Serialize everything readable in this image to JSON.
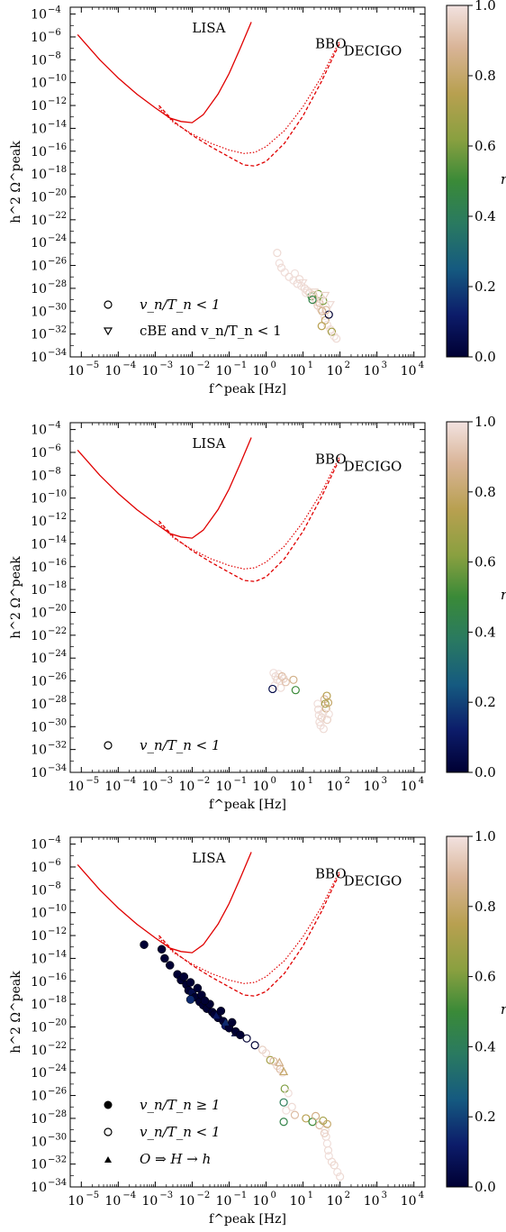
{
  "chart_data": [
    {
      "type": "scatter",
      "xlabel": "f^peak [Hz]",
      "ylabel": "h^2 Ω^peak",
      "xlim": [
        -5.3,
        4.3
      ],
      "ylim": [
        -34,
        -3.4
      ],
      "xscale": "log",
      "yscale": "log",
      "x_tick_exponents": [
        -5,
        -4,
        -3,
        -2,
        -1,
        0,
        1,
        2,
        3,
        4
      ],
      "y_tick_exponents": [
        -34,
        -32,
        -30,
        -28,
        -26,
        -24,
        -22,
        -20,
        -18,
        -16,
        -14,
        -12,
        -10,
        -8,
        -6,
        -4
      ],
      "colorbar": {
        "label": "r",
        "ticks": [
          "0.0",
          "0.2",
          "0.4",
          "0.6",
          "0.8",
          "1.0"
        ]
      },
      "detector_labels": [
        {
          "text": "LISA",
          "log_f": -1.55,
          "log_h2": -5.6
        },
        {
          "text": "BBO",
          "log_f": 1.75,
          "log_h2": -7.0
        },
        {
          "text": "DECIGO",
          "log_f": 2.95,
          "log_h2": -7.6
        }
      ],
      "legend": {
        "position": "bottom-left",
        "entries": [
          {
            "marker": "open-circle",
            "text": "v_n/T_n < 1"
          },
          {
            "marker": "open-triangle-down",
            "text": "cBE and v_n/T_n < 1"
          }
        ]
      },
      "points": {
        "open_circles": [
          [
            2.0,
            -24.9,
            0.98
          ],
          [
            2.3,
            -25.8,
            0.99
          ],
          [
            2.6,
            -26.2,
            0.98
          ],
          [
            3.2,
            -26.6,
            0.99
          ],
          [
            4.2,
            -27.0,
            0.98
          ],
          [
            5.5,
            -27.3,
            0.99
          ],
          [
            7.0,
            -27.6,
            0.98
          ],
          [
            9.0,
            -27.8,
            0.99
          ],
          [
            11.0,
            -28.0,
            0.97
          ],
          [
            13.0,
            -28.2,
            0.98
          ],
          [
            15.0,
            -28.4,
            0.96
          ],
          [
            17.0,
            -28.7,
            0.5
          ],
          [
            19.0,
            -28.6,
            0.92
          ],
          [
            21.0,
            -28.9,
            0.98
          ],
          [
            23.0,
            -29.2,
            0.99
          ],
          [
            25.0,
            -29.5,
            0.95
          ],
          [
            28.0,
            -29.3,
            0.9
          ],
          [
            30.0,
            -29.8,
            0.97
          ],
          [
            33.0,
            -30.0,
            0.85
          ],
          [
            35.0,
            -29.1,
            0.6
          ],
          [
            38.0,
            -30.4,
            0.98
          ],
          [
            40.0,
            -30.8,
            0.8
          ],
          [
            45.0,
            -31.2,
            0.99
          ],
          [
            50.0,
            -30.3,
            0.0
          ],
          [
            55.0,
            -31.6,
            0.98
          ],
          [
            60.0,
            -31.8,
            0.7
          ],
          [
            70.0,
            -32.2,
            0.99
          ],
          [
            80.0,
            -32.4,
            0.98
          ],
          [
            18.0,
            -29.0,
            0.45
          ],
          [
            26.0,
            -28.5,
            0.6
          ],
          [
            32.0,
            -31.3,
            0.75
          ],
          [
            42.0,
            -29.9,
            0.9
          ],
          [
            6.0,
            -26.7,
            0.99
          ],
          [
            8.0,
            -27.2,
            0.98
          ],
          [
            12.0,
            -28.4,
            0.99
          ]
        ],
        "open_triangles": [
          [
            10.0,
            -27.5,
            0.98
          ],
          [
            20.0,
            -28.3,
            0.97
          ],
          [
            30.0,
            -29.0,
            0.98
          ],
          [
            40.0,
            -28.6,
            0.96
          ],
          [
            55.0,
            -29.4,
            0.98
          ]
        ],
        "filled_circles": [],
        "filled_triangles": []
      }
    },
    {
      "type": "scatter",
      "xlabel": "f^peak [Hz]",
      "ylabel": "h^2 Ω^peak",
      "xlim": [
        -5.3,
        4.3
      ],
      "ylim": [
        -34,
        -3.4
      ],
      "xscale": "log",
      "yscale": "log",
      "x_tick_exponents": [
        -5,
        -4,
        -3,
        -2,
        -1,
        0,
        1,
        2,
        3,
        4
      ],
      "y_tick_exponents": [
        -34,
        -32,
        -30,
        -28,
        -26,
        -24,
        -22,
        -20,
        -18,
        -16,
        -14,
        -12,
        -10,
        -8,
        -6,
        -4
      ],
      "colorbar": {
        "label": "r",
        "ticks": [
          "0.0",
          "0.2",
          "0.4",
          "0.6",
          "0.8",
          "1.0"
        ]
      },
      "detector_labels": [
        {
          "text": "LISA",
          "log_f": -1.55,
          "log_h2": -5.6
        },
        {
          "text": "BBO",
          "log_f": 1.75,
          "log_h2": -7.0
        },
        {
          "text": "DECIGO",
          "log_f": 2.95,
          "log_h2": -7.6
        }
      ],
      "legend": {
        "position": "bottom-left",
        "entries": [
          {
            "marker": "open-circle",
            "text": "v_n/T_n < 1"
          }
        ]
      },
      "points": {
        "open_circles": [
          [
            1.6,
            -25.3,
            0.99
          ],
          [
            1.8,
            -25.6,
            0.98
          ],
          [
            2.0,
            -25.9,
            0.97
          ],
          [
            2.2,
            -25.4,
            0.99
          ],
          [
            2.4,
            -26.0,
            0.98
          ],
          [
            2.7,
            -25.6,
            0.9
          ],
          [
            3.0,
            -25.8,
            0.96
          ],
          [
            1.7,
            -26.4,
            0.99
          ],
          [
            1.5,
            -26.7,
            0.05
          ],
          [
            2.5,
            -26.6,
            0.98
          ],
          [
            3.4,
            -26.1,
            0.92
          ],
          [
            5.5,
            -25.9,
            0.85
          ],
          [
            6.3,
            -26.8,
            0.5
          ],
          [
            25.0,
            -28.0,
            0.99
          ],
          [
            26.0,
            -28.5,
            0.98
          ],
          [
            27.0,
            -29.0,
            0.99
          ],
          [
            28.0,
            -29.6,
            0.98
          ],
          [
            30.0,
            -29.9,
            0.99
          ],
          [
            32.0,
            -29.2,
            0.97
          ],
          [
            35.0,
            -28.8,
            0.98
          ],
          [
            38.0,
            -27.6,
            0.9
          ],
          [
            40.0,
            -28.0,
            0.7
          ],
          [
            42.0,
            -28.4,
            0.85
          ],
          [
            45.0,
            -29.4,
            0.95
          ],
          [
            48.0,
            -27.9,
            0.8
          ],
          [
            50.0,
            -28.9,
            0.99
          ],
          [
            36.0,
            -30.2,
            0.98
          ],
          [
            44.0,
            -27.3,
            0.75
          ]
        ],
        "open_triangles": [],
        "filled_circles": [],
        "filled_triangles": []
      }
    },
    {
      "type": "scatter",
      "xlabel": "f^peak [Hz]",
      "ylabel": "h^2 Ω^peak",
      "xlim": [
        -5.3,
        4.3
      ],
      "ylim": [
        -34,
        -3.4
      ],
      "xscale": "log",
      "yscale": "log",
      "x_tick_exponents": [
        -5,
        -4,
        -3,
        -2,
        -1,
        0,
        1,
        2,
        3,
        4
      ],
      "y_tick_exponents": [
        -34,
        -32,
        -30,
        -28,
        -26,
        -24,
        -22,
        -20,
        -18,
        -16,
        -14,
        -12,
        -10,
        -8,
        -6,
        -4
      ],
      "colorbar": {
        "label": "r",
        "ticks": [
          "0.0",
          "0.2",
          "0.4",
          "0.6",
          "0.8",
          "1.0"
        ]
      },
      "detector_labels": [
        {
          "text": "LISA",
          "log_f": -1.55,
          "log_h2": -5.6
        },
        {
          "text": "BBO",
          "log_f": 1.75,
          "log_h2": -7.0
        },
        {
          "text": "DECIGO",
          "log_f": 2.95,
          "log_h2": -7.6
        }
      ],
      "legend": {
        "position": "bottom-left",
        "entries": [
          {
            "marker": "filled-circle",
            "text": "v_n/T_n ≥ 1"
          },
          {
            "marker": "open-circle",
            "text": "v_n/T_n < 1"
          },
          {
            "marker": "filled-triangle",
            "text": "O ⇒ H → h"
          }
        ]
      },
      "points": {
        "filled_circles": [
          [
            0.0005,
            -12.8,
            0.0
          ],
          [
            0.0015,
            -13.2,
            0.0
          ],
          [
            0.0018,
            -14.0,
            0.0
          ],
          [
            0.0025,
            -14.6,
            0.0
          ],
          [
            0.004,
            -15.4,
            0.0
          ],
          [
            0.005,
            -15.9,
            0.0
          ],
          [
            0.006,
            -15.6,
            0.0
          ],
          [
            0.007,
            -16.3,
            0.0
          ],
          [
            0.008,
            -16.8,
            0.0
          ],
          [
            0.009,
            -16.1,
            0.0
          ],
          [
            0.01,
            -17.0,
            0.05
          ],
          [
            0.012,
            -17.4,
            0.0
          ],
          [
            0.014,
            -16.6,
            0.0
          ],
          [
            0.016,
            -17.8,
            0.0
          ],
          [
            0.018,
            -17.2,
            0.0
          ],
          [
            0.02,
            -18.1,
            0.0
          ],
          [
            0.025,
            -18.4,
            0.0
          ],
          [
            0.03,
            -18.0,
            0.0
          ],
          [
            0.035,
            -18.7,
            0.0
          ],
          [
            0.04,
            -18.9,
            0.0
          ],
          [
            0.05,
            -19.2,
            0.0
          ],
          [
            0.06,
            -18.6,
            0.0
          ],
          [
            0.07,
            -19.5,
            0.0
          ],
          [
            0.08,
            -19.9,
            0.1
          ],
          [
            0.1,
            -20.1,
            0.0
          ],
          [
            0.12,
            -19.6,
            0.0
          ],
          [
            0.15,
            -20.4,
            0.0
          ],
          [
            0.2,
            -20.7,
            0.0
          ],
          [
            0.009,
            -17.6,
            0.15
          ],
          [
            0.022,
            -17.7,
            0.0
          ]
        ],
        "open_circles": [
          [
            0.3,
            -21.0,
            0.0
          ],
          [
            0.5,
            -21.6,
            0.0
          ],
          [
            0.8,
            -22.0,
            0.95
          ],
          [
            1.0,
            -22.3,
            0.98
          ],
          [
            1.3,
            -22.9,
            0.7
          ],
          [
            1.6,
            -23.0,
            0.9
          ],
          [
            2.0,
            -23.4,
            0.96
          ],
          [
            2.4,
            -23.7,
            0.9
          ],
          [
            2.8,
            -24.0,
            0.99
          ],
          [
            3.2,
            -25.4,
            0.6
          ],
          [
            4.0,
            -25.8,
            0.99
          ],
          [
            3.0,
            -26.6,
            0.4
          ],
          [
            3.5,
            -27.3,
            0.99
          ],
          [
            5.0,
            -27.0,
            0.98
          ],
          [
            6.0,
            -27.7,
            0.9
          ],
          [
            3.0,
            -28.3,
            0.45
          ],
          [
            12.0,
            -28.0,
            0.75
          ],
          [
            18.0,
            -28.3,
            0.5
          ],
          [
            22.0,
            -27.8,
            0.85
          ],
          [
            28.0,
            -28.6,
            0.9
          ],
          [
            35.0,
            -28.2,
            0.7
          ],
          [
            40.0,
            -29.0,
            0.99
          ],
          [
            42.0,
            -29.6,
            0.98
          ],
          [
            45.0,
            -30.2,
            0.99
          ],
          [
            48.0,
            -30.8,
            0.98
          ],
          [
            50.0,
            -31.3,
            0.99
          ],
          [
            60.0,
            -31.8,
            0.98
          ],
          [
            70.0,
            -32.1,
            0.97
          ],
          [
            85.0,
            -32.7,
            0.99
          ],
          [
            100.0,
            -33.1,
            0.98
          ],
          [
            45.0,
            -28.5,
            0.8
          ],
          [
            38.0,
            -29.3,
            0.95
          ]
        ],
        "filled_triangles": [
          [
            0.045,
            -19.0,
            0.1
          ],
          [
            0.08,
            -19.6,
            0.15
          ]
        ],
        "open_triangles": [
          [
            0.05,
            -18.9,
            0.2
          ],
          [
            0.15,
            -20.5,
            0.05
          ],
          [
            2.3,
            -23.1,
            0.85
          ],
          [
            3.0,
            -23.9,
            0.8
          ]
        ]
      }
    }
  ]
}
